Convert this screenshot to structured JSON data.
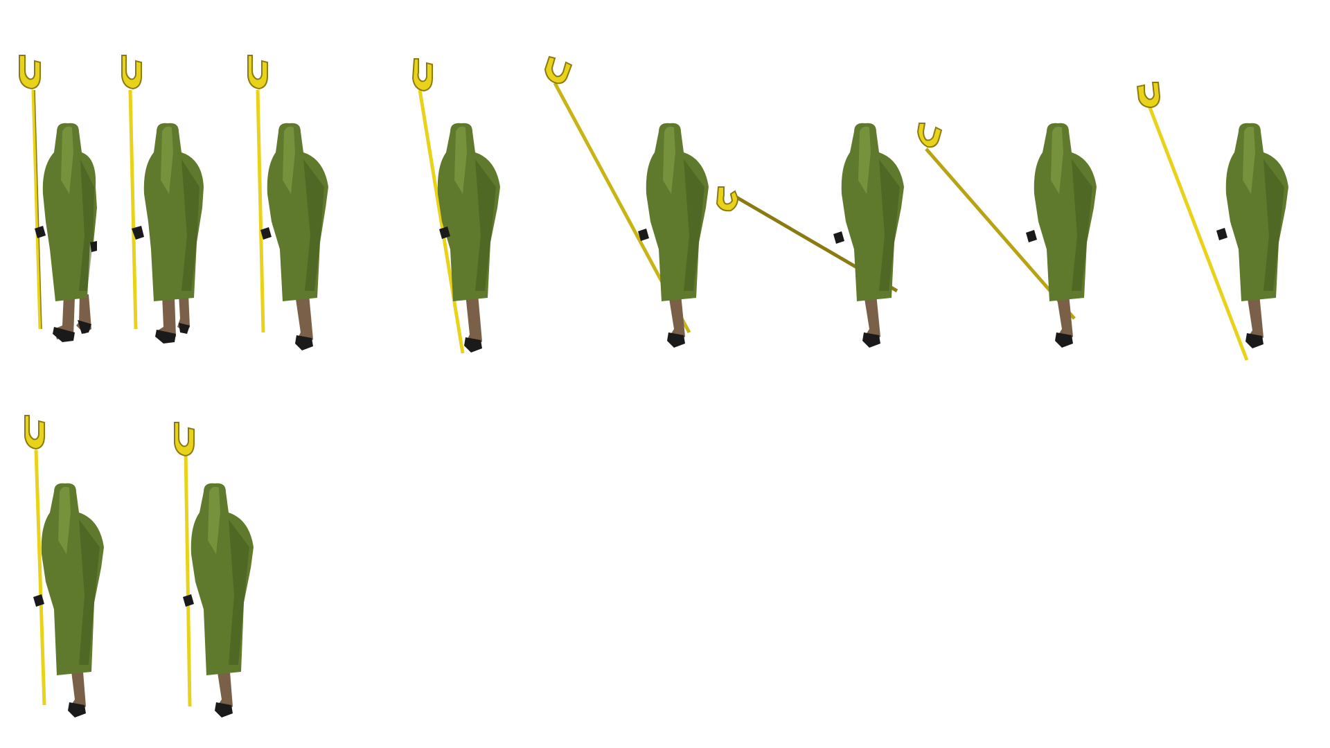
{
  "sprite_sheet": {
    "background": "#ffffff",
    "character": "hooded-figure-with-staff",
    "colors": {
      "cloak": "#5f7a2c",
      "cloak_shadow": "#3f551a",
      "cloak_highlight": "#8aa54c",
      "staff": "#e9d21a",
      "staff_dark": "#8a7a10",
      "legs": "#7a6048",
      "boots": "#1a1a1a"
    },
    "frames": [
      {
        "id": 1,
        "pose": "standing-staff-upright"
      },
      {
        "id": 2,
        "pose": "standing-staff-upright"
      },
      {
        "id": 3,
        "pose": "walking-staff-upright"
      },
      {
        "id": 4,
        "pose": "walking-staff-tilted"
      },
      {
        "id": 5,
        "pose": "swinging-staff-diagonal"
      },
      {
        "id": 6,
        "pose": "swinging-staff-horizontal"
      },
      {
        "id": 7,
        "pose": "swinging-staff-diagonal"
      },
      {
        "id": 8,
        "pose": "walking-staff-tilted"
      },
      {
        "id": 9,
        "pose": "walking-staff-upright"
      },
      {
        "id": 10,
        "pose": "walking-staff-upright"
      }
    ]
  }
}
